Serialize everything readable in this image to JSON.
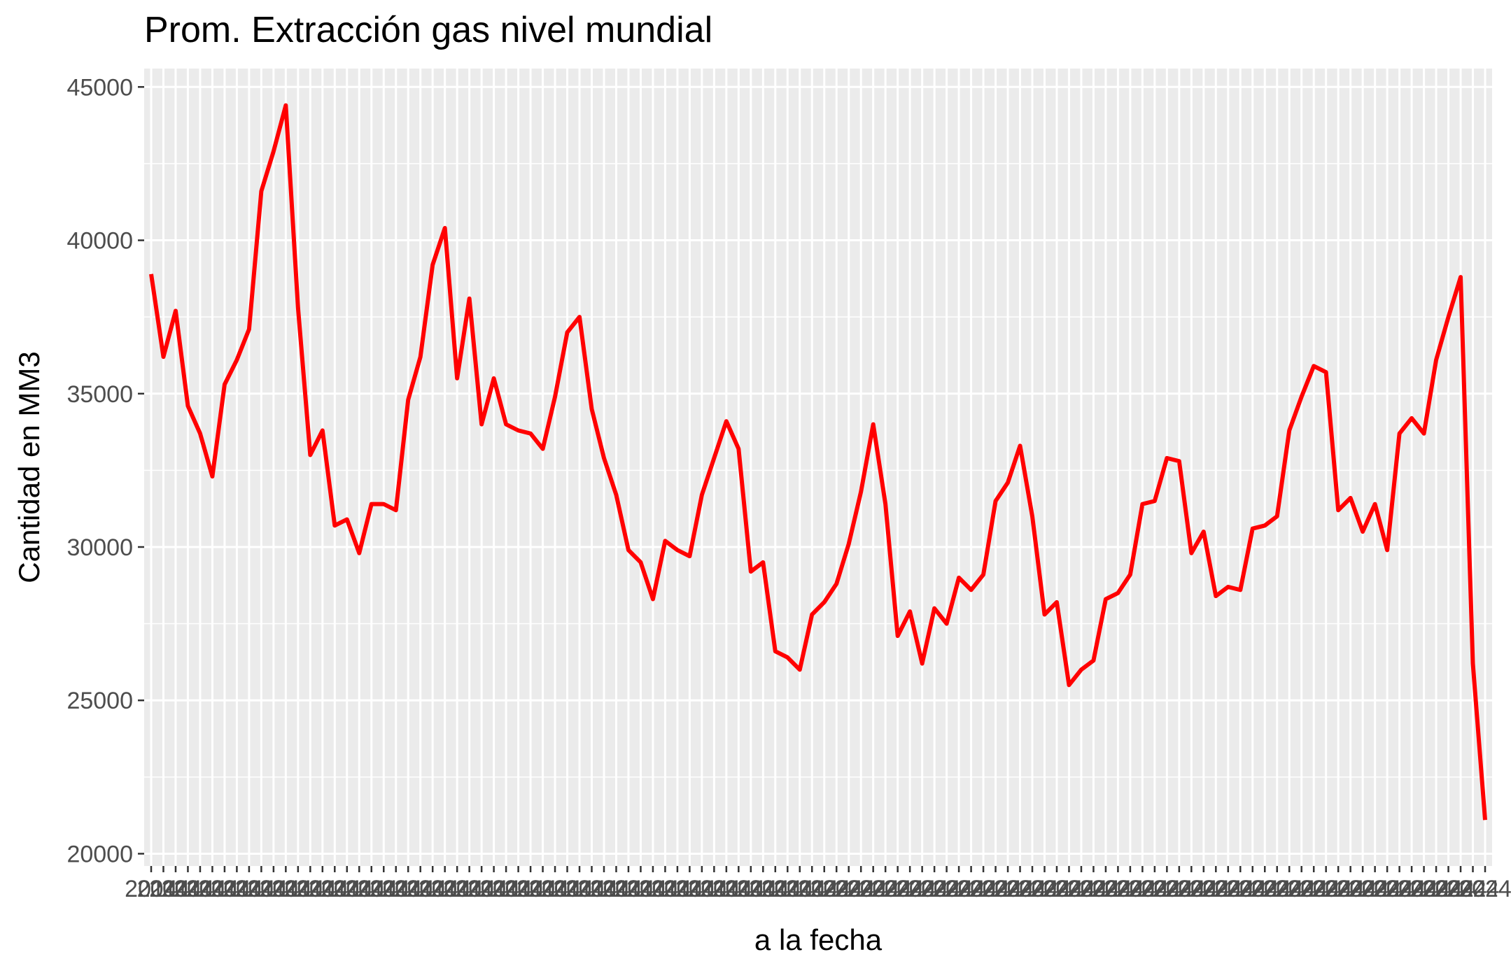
{
  "chart_data": {
    "type": "line",
    "title": "Prom. Extracción gas nivel mundial",
    "xlabel": "a la fecha",
    "ylabel": "Cantidad en MM3",
    "ylim": [
      19600,
      45600
    ],
    "yticks": [
      20000,
      25000,
      30000,
      35000,
      40000,
      45000
    ],
    "ytick_labels": [
      "20000",
      "25000",
      "30000",
      "35000",
      "40000",
      "45000"
    ],
    "x_tick_label_texts": [
      "2014",
      "2024"
    ],
    "grid": true,
    "legend": "none",
    "colors": {
      "line": "#ff0000",
      "panel_background": "#ebebeb",
      "grid": "#ffffff",
      "axis_text": "#4d4d4d",
      "tick": "#333333"
    },
    "series": [
      {
        "values": [
          38900,
          36200,
          37700,
          34600,
          33700,
          32300,
          35300,
          36100,
          37100,
          41600,
          42900,
          44400,
          37800,
          33000,
          33800,
          30700,
          30900,
          29800,
          31400,
          31400,
          31200,
          34800,
          36200,
          39200,
          40400,
          35500,
          38100,
          34000,
          35500,
          34000,
          33800,
          33700,
          33200,
          34900,
          37000,
          37500,
          34500,
          32900,
          31700,
          29900,
          29500,
          28300,
          30200,
          29900,
          29700,
          31700,
          32900,
          34100,
          33200,
          29200,
          29500,
          26600,
          26400,
          26000,
          27800,
          28200,
          28800,
          30100,
          31800,
          34000,
          31400,
          27100,
          27900,
          26200,
          28000,
          27500,
          29000,
          28600,
          29100,
          31500,
          32100,
          33300,
          31000,
          27800,
          28200,
          25500,
          26000,
          26300,
          28300,
          28500,
          29100,
          31400,
          31500,
          32900,
          32800,
          29800,
          30500,
          28400,
          28700,
          28600,
          30600,
          30700,
          31000,
          33800,
          34900,
          35900,
          35700,
          31200,
          31600,
          30500,
          31400,
          29900,
          33700,
          34200,
          33700,
          36100,
          37500,
          38800,
          26200,
          21100
        ]
      }
    ]
  }
}
